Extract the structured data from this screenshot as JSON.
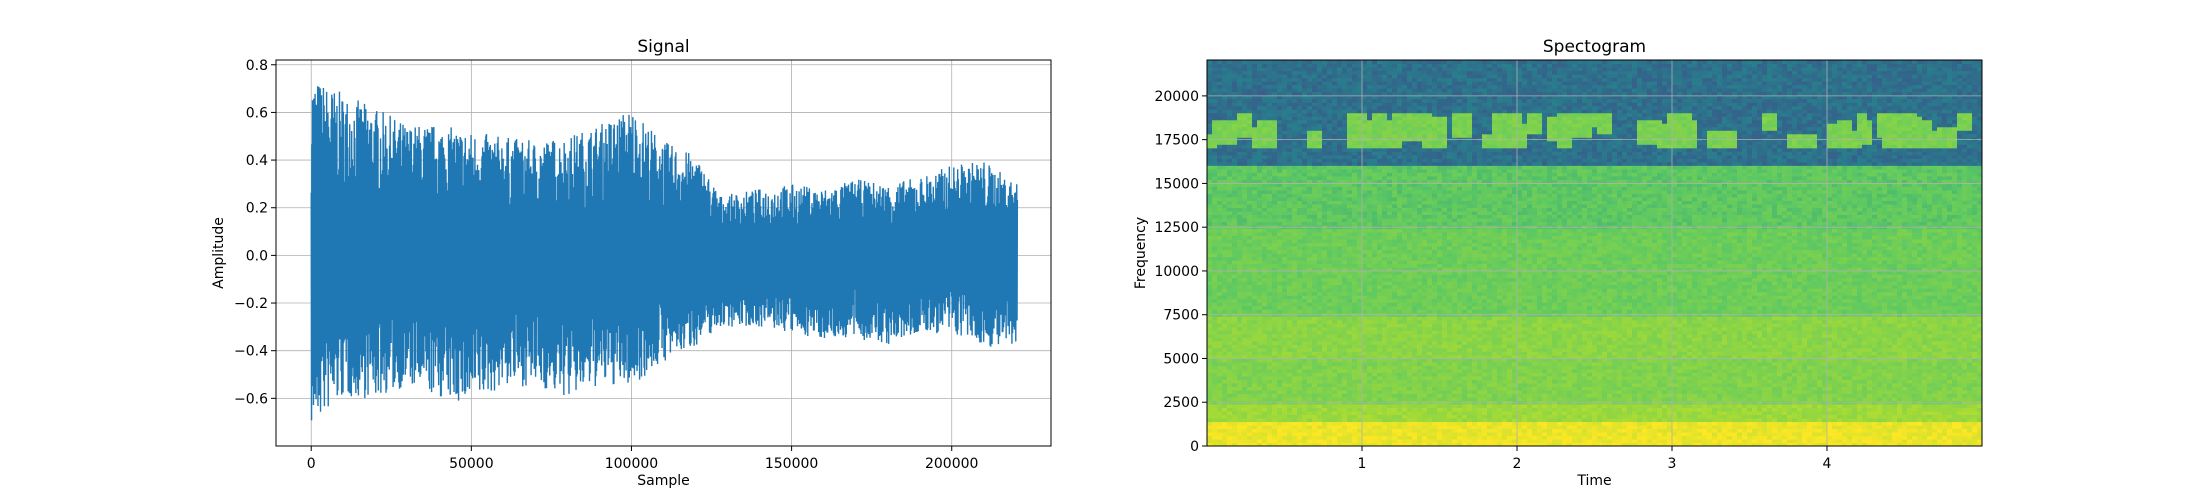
{
  "chart_data": [
    {
      "type": "line",
      "title": "Signal",
      "xlabel": "Sample",
      "ylabel": "Amplitude",
      "xlim": [
        -11000,
        231000
      ],
      "ylim": [
        -0.8,
        0.82
      ],
      "xticks": [
        0,
        50000,
        100000,
        150000,
        200000
      ],
      "xtick_labels": [
        "0",
        "50000",
        "100000",
        "150000",
        "200000"
      ],
      "yticks": [
        -0.6,
        -0.4,
        -0.2,
        0.0,
        0.2,
        0.4,
        0.6,
        0.8
      ],
      "ytick_labels": [
        "−0.6",
        "−0.4",
        "−0.2",
        "0.0",
        "0.2",
        "0.4",
        "0.6",
        "0.8"
      ],
      "grid": true,
      "color": "#1f77b4",
      "series": [
        {
          "x": [
            0,
            10000,
            20000,
            30000,
            40000,
            50000,
            60000,
            70000,
            80000,
            90000,
            100000,
            110000,
            120000,
            128000,
            140000,
            150000,
            160000,
            170000,
            180000,
            190000,
            200000,
            210000,
            220500
          ],
          "upper": [
            0.75,
            0.68,
            0.62,
            0.55,
            0.55,
            0.52,
            0.5,
            0.48,
            0.5,
            0.55,
            0.62,
            0.48,
            0.42,
            0.25,
            0.28,
            0.3,
            0.28,
            0.32,
            0.3,
            0.33,
            0.38,
            0.4,
            0.3
          ],
          "lower": [
            -0.72,
            -0.6,
            -0.6,
            -0.55,
            -0.6,
            -0.63,
            -0.55,
            -0.55,
            -0.6,
            -0.55,
            -0.55,
            -0.45,
            -0.38,
            -0.3,
            -0.3,
            -0.33,
            -0.35,
            -0.35,
            -0.38,
            -0.33,
            -0.33,
            -0.38,
            -0.4
          ]
        }
      ]
    },
    {
      "type": "heatmap",
      "title": "Spectogram",
      "xlabel": "Time",
      "ylabel": "Frequency",
      "xlim": [
        0,
        5.0
      ],
      "ylim": [
        0,
        22050
      ],
      "xticks": [
        1,
        2,
        3,
        4
      ],
      "xtick_labels": [
        "1",
        "2",
        "3",
        "4"
      ],
      "yticks": [
        0,
        2500,
        5000,
        7500,
        10000,
        12500,
        15000,
        17500,
        20000
      ],
      "ytick_labels": [
        "0",
        "2500",
        "5000",
        "7500",
        "10000",
        "12500",
        "15000",
        "17500",
        "20000"
      ],
      "grid": true,
      "colormap": [
        "#3b528b",
        "#21918c",
        "#5ec962",
        "#a5db36",
        "#fde725"
      ],
      "frequency_bands": [
        {
          "from": 0,
          "to": 1500,
          "level": 0.95
        },
        {
          "from": 1500,
          "to": 2500,
          "level": 0.72
        },
        {
          "from": 2500,
          "to": 5000,
          "level": 0.62
        },
        {
          "from": 5000,
          "to": 7500,
          "level": 0.66
        },
        {
          "from": 7500,
          "to": 12500,
          "level": 0.55
        },
        {
          "from": 12500,
          "to": 16000,
          "level": 0.5
        },
        {
          "from": 16000,
          "to": 22050,
          "level": 0.12
        }
      ],
      "bird_band": {
        "from": 17000,
        "to": 19000,
        "level": 0.55
      }
    }
  ]
}
